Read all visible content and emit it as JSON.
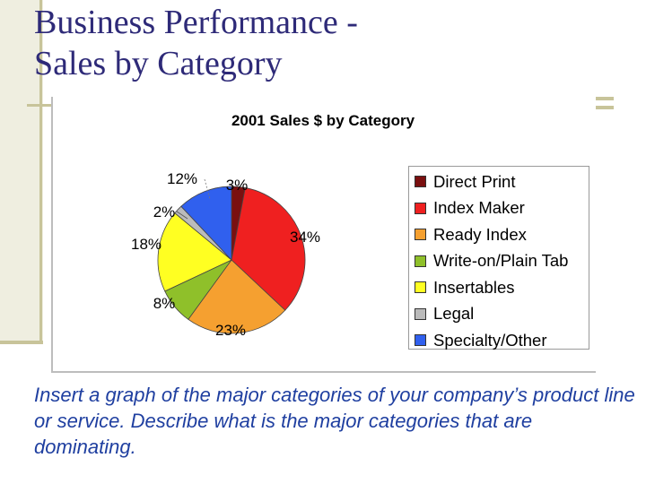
{
  "slide": {
    "title_line1": "Business Performance -",
    "title_line2": "Sales by Category",
    "caption": "Insert a graph of the major categories of your company’s product line or service. Describe what is the major categories that are dominating."
  },
  "chart_data": {
    "type": "pie",
    "title": "2001 Sales $ by Category",
    "legend_position": "right",
    "series": [
      {
        "name": "Direct Print",
        "value": 3,
        "label": "3%",
        "color": "#7a1010"
      },
      {
        "name": "Index Maker",
        "value": 34,
        "label": "34%",
        "color": "#ef2020"
      },
      {
        "name": "Ready Index",
        "value": 23,
        "label": "23%",
        "color": "#f5a030"
      },
      {
        "name": "Write-on/Plain Tab",
        "value": 8,
        "label": "8%",
        "color": "#8fc02a"
      },
      {
        "name": "Insertables",
        "value": 18,
        "label": "18%",
        "color": "#ffff22"
      },
      {
        "name": "Legal",
        "value": 2,
        "label": "2%",
        "color": "#bbbbbb"
      },
      {
        "name": "Specialty/Other",
        "value": 12,
        "label": "12%",
        "color": "#3060ee"
      }
    ]
  },
  "colors": {
    "title": "#2e2a78",
    "caption": "#1f3fa0",
    "accent": "#c8c49a"
  }
}
